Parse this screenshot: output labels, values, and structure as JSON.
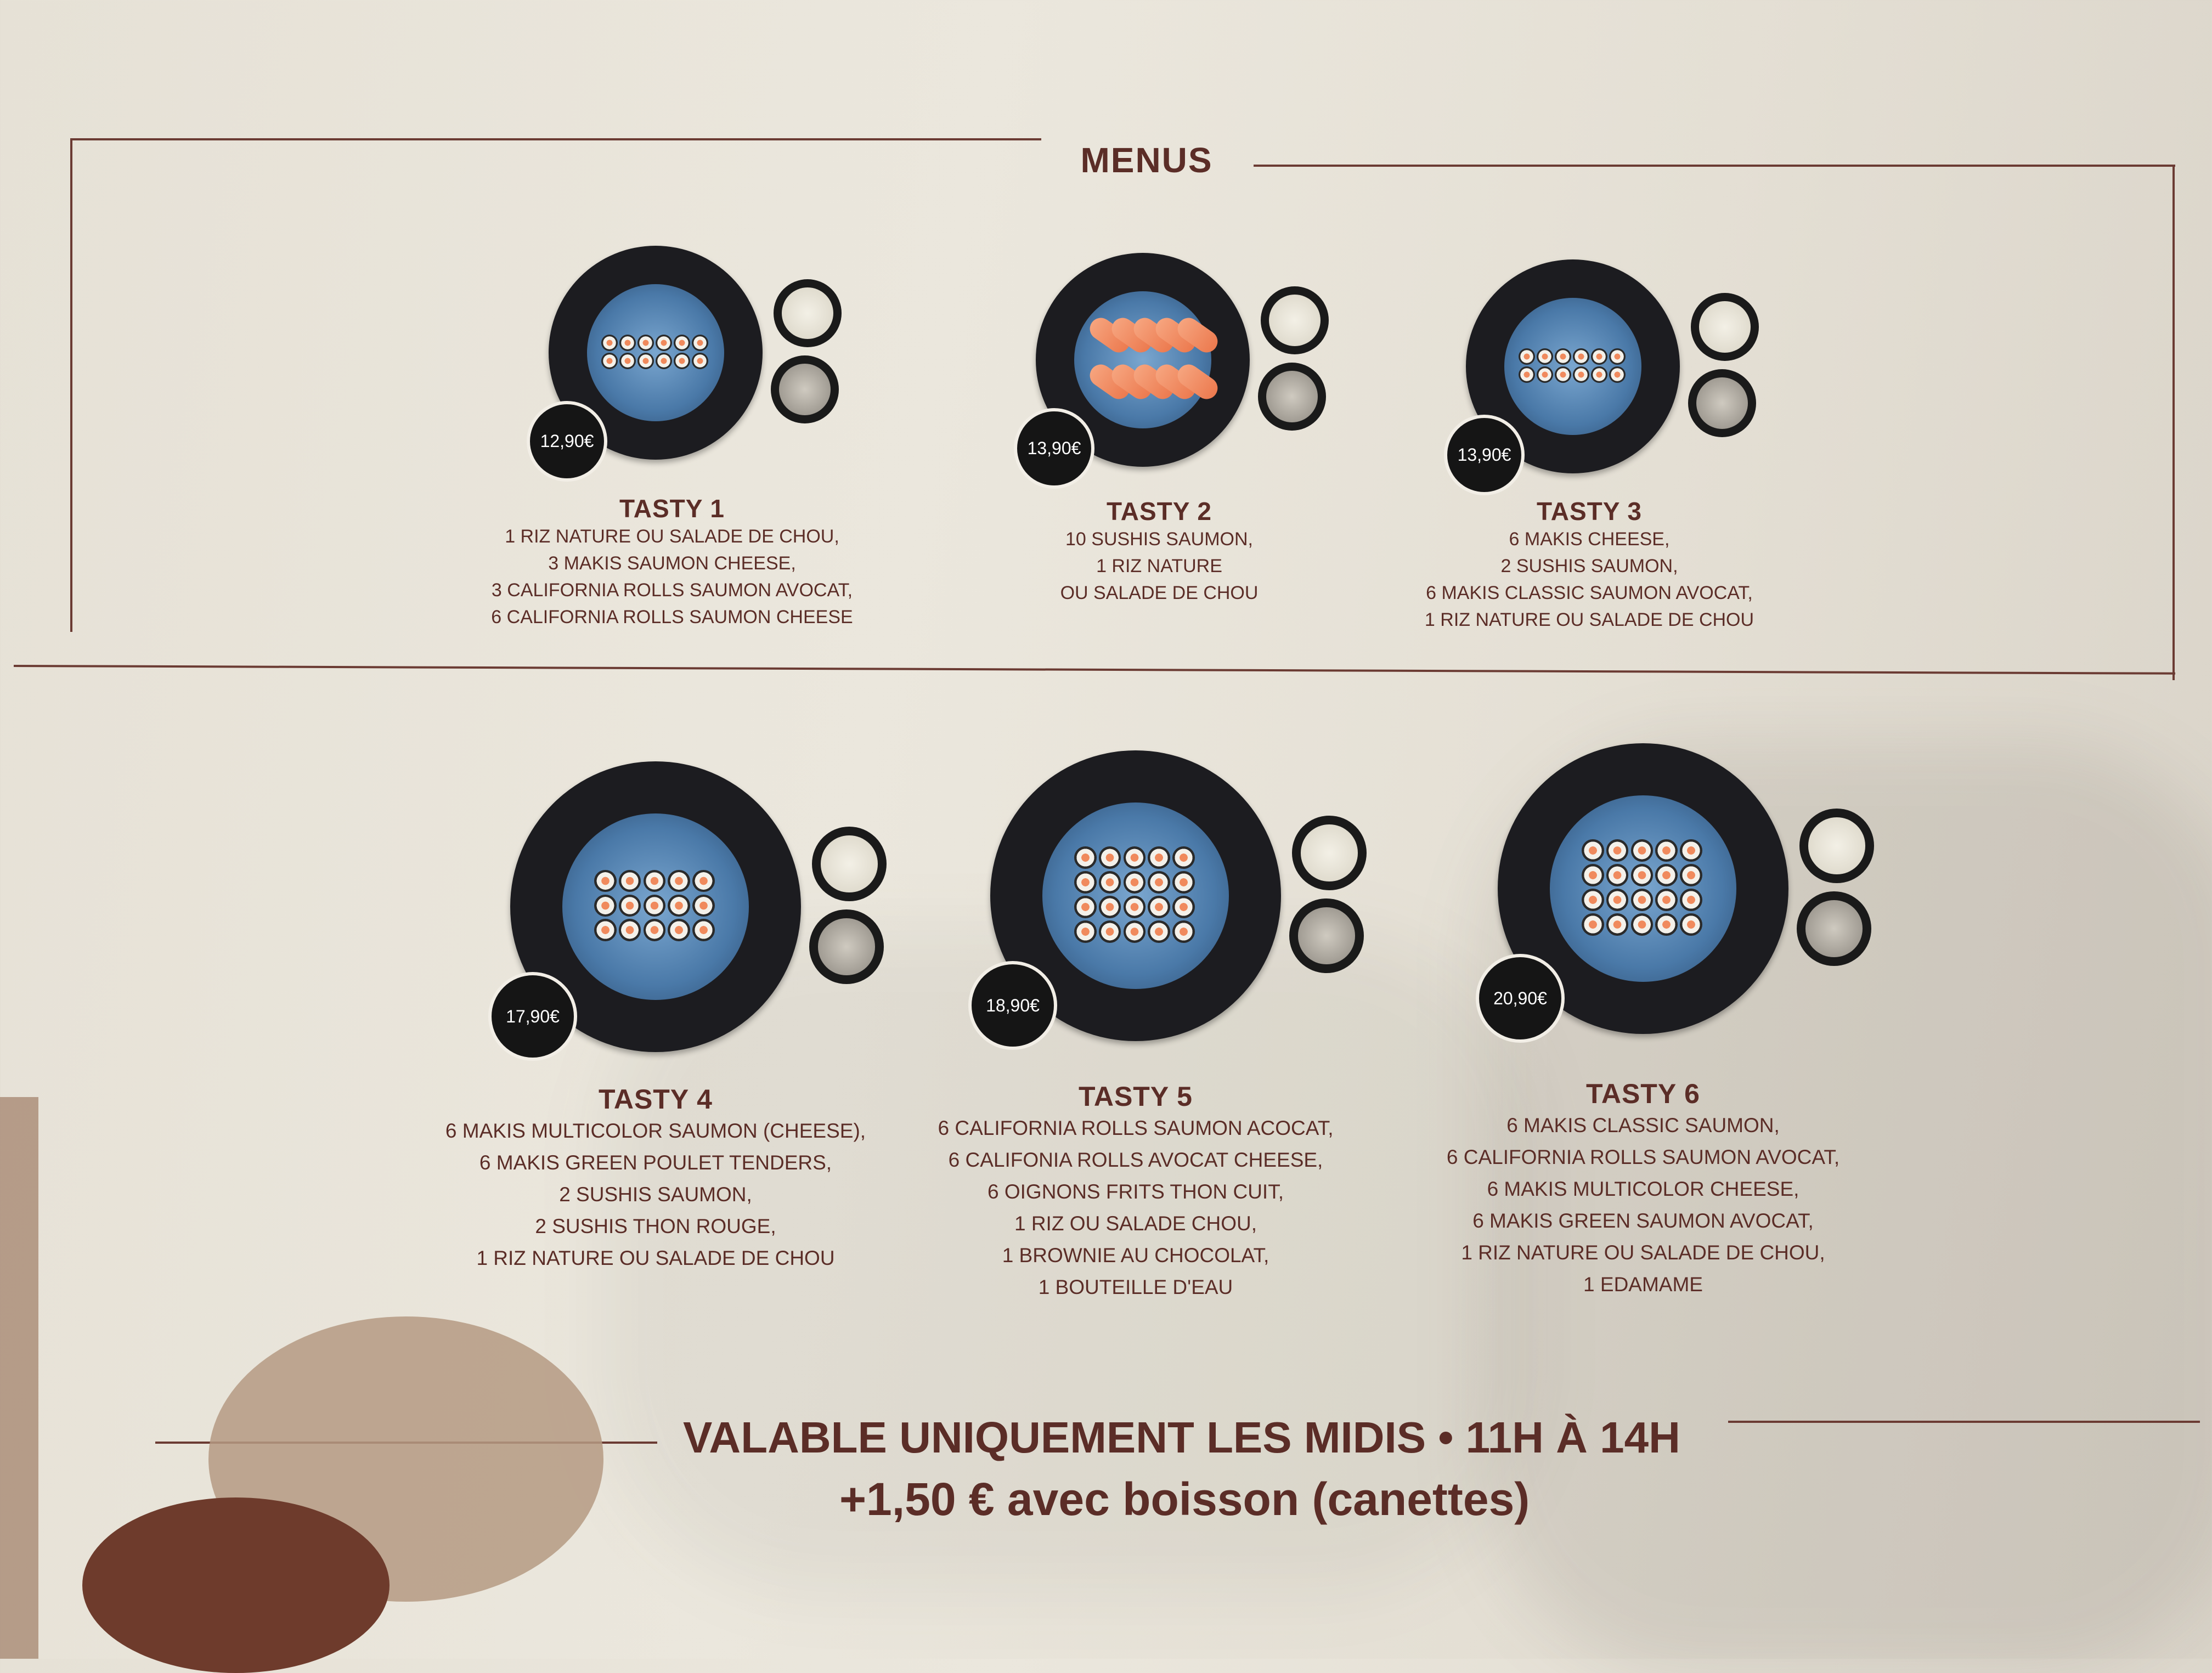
{
  "header": {
    "title": "MENUS"
  },
  "colors": {
    "text": "#5b2d27",
    "plate_rim": "#1c1c20",
    "plate_center": "#4a79a8",
    "badge": "#151515"
  },
  "menus": [
    {
      "name": "TASTY 1",
      "price": "12,90€",
      "items": [
        "1 RIZ NATURE OU SALADE DE CHOU,",
        "3 MAKIS SAUMON CHEESE,",
        "3 CALIFORNIA ROLLS SAUMON AVOCAT,",
        "6 CALIFORNIA ROLLS SAUMON CHEESE"
      ]
    },
    {
      "name": "TASTY 2",
      "price": "13,90€",
      "items": [
        "10 SUSHIS SAUMON,",
        "1 RIZ NATURE",
        "OU SALADE DE CHOU"
      ]
    },
    {
      "name": "TASTY 3",
      "price": "13,90€",
      "items": [
        "6 MAKIS CHEESE,",
        "2 SUSHIS SAUMON,",
        "6 MAKIS CLASSIC SAUMON AVOCAT,",
        "1 RIZ NATURE OU SALADE DE CHOU"
      ]
    },
    {
      "name": "TASTY 4",
      "price": "17,90€",
      "items": [
        "6 MAKIS MULTICOLOR SAUMON (CHEESE),",
        "6 MAKIS GREEN POULET TENDERS,",
        "2 SUSHIS SAUMON,",
        "2 SUSHIS THON ROUGE,",
        "1 RIZ NATURE OU SALADE DE CHOU"
      ]
    },
    {
      "name": "TASTY 5",
      "price": "18,90€",
      "items": [
        "6 CALIFORNIA ROLLS SAUMON ACOCAT,",
        "6 CALIFONIA ROLLS AVOCAT CHEESE,",
        "6 OIGNONS FRITS THON CUIT,",
        "1 RIZ OU SALADE CHOU,",
        "1 BROWNIE AU CHOCOLAT,",
        "1 BOUTEILLE D'EAU"
      ]
    },
    {
      "name": "TASTY 6",
      "price": "20,90€",
      "items": [
        "6 MAKIS CLASSIC SAUMON,",
        "6 CALIFORNIA ROLLS SAUMON AVOCAT,",
        "6 MAKIS MULTICOLOR CHEESE,",
        "6 MAKIS GREEN SAUMON AVOCAT,",
        "1 RIZ NATURE OU SALADE DE CHOU,",
        "1 EDAMAME"
      ]
    }
  ],
  "footer": {
    "validity": "VALABLE UNIQUEMENT LES MIDIS • 11H À 14H",
    "drink": "+1,50 € avec boisson (canettes)"
  }
}
